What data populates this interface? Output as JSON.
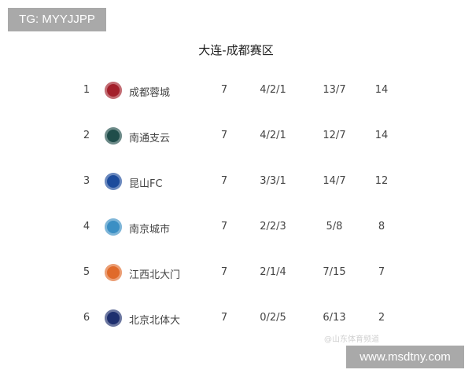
{
  "watermark_tag": "TG: MYYJJPP",
  "title": "大连-成都赛区",
  "rows": [
    {
      "rank": "1",
      "team": "成都蓉城",
      "played": "7",
      "wdl": "4/2/1",
      "goals": "13/7",
      "points": "14",
      "logo_color": "#a31f2a"
    },
    {
      "rank": "2",
      "team": "南通支云",
      "played": "7",
      "wdl": "4/2/1",
      "goals": "12/7",
      "points": "14",
      "logo_color": "#1f4d4a"
    },
    {
      "rank": "3",
      "team": "昆山FC",
      "played": "7",
      "wdl": "3/3/1",
      "goals": "14/7",
      "points": "12",
      "logo_color": "#1c4b9c"
    },
    {
      "rank": "4",
      "team": "南京城市",
      "played": "7",
      "wdl": "2/2/3",
      "goals": "5/8",
      "points": "8",
      "logo_color": "#3b8fc4"
    },
    {
      "rank": "5",
      "team": "江西北大门",
      "played": "7",
      "wdl": "2/1/4",
      "goals": "7/15",
      "points": "7",
      "logo_color": "#e06a2a"
    },
    {
      "rank": "6",
      "team": "北京北体大",
      "played": "7",
      "wdl": "0/2/5",
      "goals": "6/13",
      "points": "2",
      "logo_color": "#1e2f6e"
    }
  ],
  "weibo_watermark": "@山东体育频道",
  "site_watermark": "www.msdtny.com"
}
